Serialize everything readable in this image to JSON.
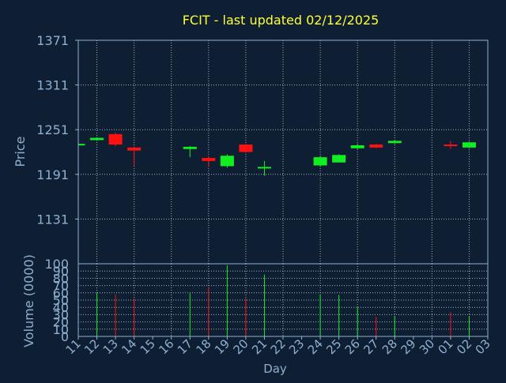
{
  "colors": {
    "background": "#0f1f33",
    "axis": "#8eb0d0",
    "grid": "#bcc8d6",
    "title": "#ffff33",
    "up": "#11ee22",
    "down": "#ff1111",
    "label": "#000000"
  },
  "chart_data": [
    {
      "type": "candlestick",
      "title": "FCIT - last updated 02/12/2025",
      "ylabel": "Price",
      "ylim": [
        1071,
        1371
      ],
      "yticks": [
        "1371",
        "1311",
        "1251",
        "1191",
        "1131"
      ],
      "grid": true,
      "days": [
        "11",
        "12",
        "13",
        "14",
        "15",
        "16",
        "17",
        "18",
        "19",
        "20",
        "21",
        "22",
        "23",
        "24",
        "25",
        "26",
        "27",
        "28",
        "29",
        "30",
        "01",
        "02",
        "03"
      ],
      "candles": [
        {
          "day": "11",
          "open": 1231,
          "high": 1232,
          "low": 1230,
          "close": 1232,
          "direction": "up"
        },
        {
          "day": "12",
          "open": 1237,
          "high": 1241,
          "low": 1236,
          "close": 1240,
          "direction": "up"
        },
        {
          "day": "13",
          "open": 1245,
          "high": 1247,
          "low": 1229,
          "close": 1231,
          "direction": "down"
        },
        {
          "day": "14",
          "open": 1227,
          "high": 1228,
          "low": 1202,
          "close": 1223,
          "direction": "down"
        },
        {
          "day": "17",
          "open": 1225,
          "high": 1229,
          "low": 1214,
          "close": 1228,
          "direction": "up"
        },
        {
          "day": "18",
          "open": 1213,
          "high": 1215,
          "low": 1201,
          "close": 1209,
          "direction": "down"
        },
        {
          "day": "19",
          "open": 1202,
          "high": 1218,
          "low": 1200,
          "close": 1216,
          "direction": "up"
        },
        {
          "day": "20",
          "open": 1231,
          "high": 1232,
          "low": 1220,
          "close": 1221,
          "direction": "down"
        },
        {
          "day": "21",
          "open": 1200,
          "high": 1209,
          "low": 1189,
          "close": 1201,
          "direction": "up"
        },
        {
          "day": "24",
          "open": 1203,
          "high": 1216,
          "low": 1201,
          "close": 1214,
          "direction": "up"
        },
        {
          "day": "25",
          "open": 1207,
          "high": 1218,
          "low": 1207,
          "close": 1217,
          "direction": "up"
        },
        {
          "day": "26",
          "open": 1226,
          "high": 1232,
          "low": 1225,
          "close": 1230,
          "direction": "up"
        },
        {
          "day": "27",
          "open": 1231,
          "high": 1232,
          "low": 1226,
          "close": 1227,
          "direction": "down"
        },
        {
          "day": "28",
          "open": 1233,
          "high": 1237,
          "low": 1232,
          "close": 1236,
          "direction": "up"
        },
        {
          "day": "01",
          "open": 1231,
          "high": 1236,
          "low": 1225,
          "close": 1230,
          "direction": "down"
        },
        {
          "day": "02",
          "open": 1227,
          "high": 1235,
          "low": 1226,
          "close": 1234,
          "direction": "up"
        }
      ]
    },
    {
      "type": "bar",
      "xlabel": "Day",
      "ylabel": "Volume (0000)",
      "ylim": [
        0,
        100
      ],
      "yticks": [
        "100",
        "90",
        "80",
        "70",
        "60",
        "50",
        "40",
        "30",
        "20",
        "10",
        "0"
      ],
      "categories": [
        "12",
        "13",
        "14",
        "17",
        "18",
        "19",
        "20",
        "21",
        "24",
        "25",
        "26",
        "27",
        "28",
        "01",
        "02"
      ],
      "values": [
        60,
        58,
        52,
        60,
        68,
        98,
        52,
        85,
        58,
        57,
        40,
        27,
        28,
        33,
        27
      ],
      "directions": [
        "up",
        "down",
        "down",
        "up",
        "down",
        "up",
        "down",
        "up",
        "up",
        "up",
        "up",
        "down",
        "up",
        "down",
        "up"
      ]
    }
  ]
}
